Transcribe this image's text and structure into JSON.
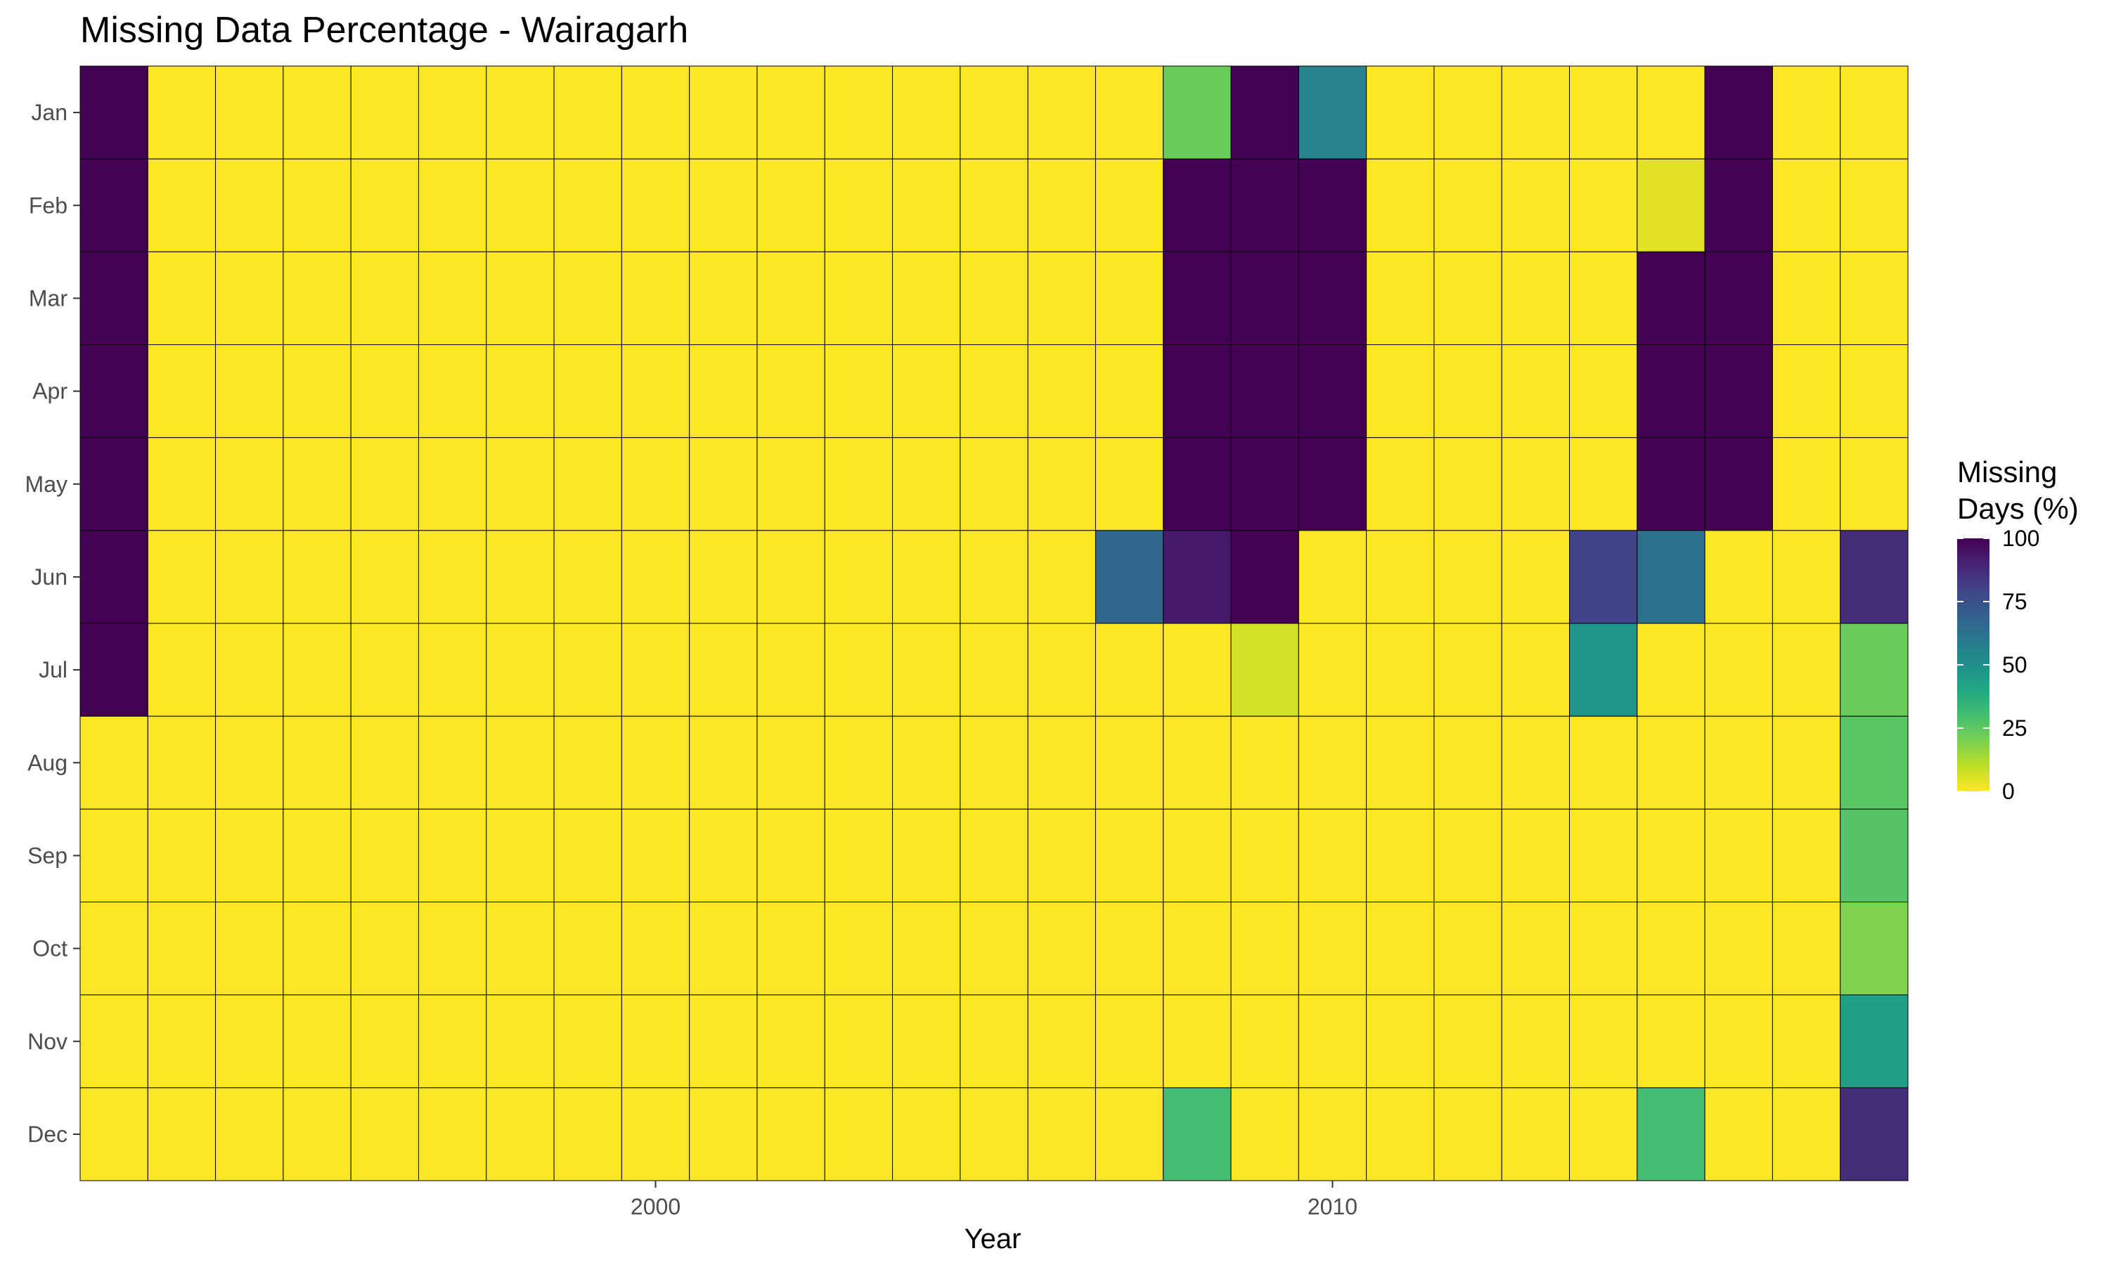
{
  "chart_data": {
    "type": "heatmap",
    "title": "Missing Data Percentage - Wairagarh",
    "xlabel": "Year",
    "ylabel": "",
    "x_tick_labels": [
      "2000",
      "2010"
    ],
    "x_tick_years": [
      2000,
      2010
    ],
    "years": [
      1992,
      1993,
      1994,
      1995,
      1996,
      1997,
      1998,
      1999,
      2000,
      2001,
      2002,
      2003,
      2004,
      2005,
      2006,
      2007,
      2008,
      2009,
      2010,
      2011,
      2012,
      2013,
      2014,
      2015,
      2016,
      2017,
      2018
    ],
    "months": [
      "Jan",
      "Feb",
      "Mar",
      "Apr",
      "May",
      "Jun",
      "Jul",
      "Aug",
      "Sep",
      "Oct",
      "Nov",
      "Dec"
    ],
    "values": [
      [
        100,
        0,
        0,
        0,
        0,
        0,
        0,
        0,
        0,
        0,
        0,
        0,
        0,
        0,
        0,
        0,
        23,
        100,
        55,
        0,
        0,
        0,
        0,
        0,
        100,
        0,
        0
      ],
      [
        100,
        0,
        0,
        0,
        0,
        0,
        0,
        0,
        0,
        0,
        0,
        0,
        0,
        0,
        0,
        0,
        100,
        100,
        100,
        0,
        0,
        0,
        0,
        4,
        100,
        0,
        0
      ],
      [
        100,
        0,
        0,
        0,
        0,
        0,
        0,
        0,
        0,
        0,
        0,
        0,
        0,
        0,
        0,
        0,
        100,
        100,
        100,
        0,
        0,
        0,
        0,
        100,
        100,
        0,
        0
      ],
      [
        100,
        0,
        0,
        0,
        0,
        0,
        0,
        0,
        0,
        0,
        0,
        0,
        0,
        0,
        0,
        0,
        100,
        100,
        100,
        0,
        0,
        0,
        0,
        100,
        100,
        0,
        0
      ],
      [
        100,
        0,
        0,
        0,
        0,
        0,
        0,
        0,
        0,
        0,
        0,
        0,
        0,
        0,
        0,
        0,
        100,
        100,
        100,
        0,
        0,
        0,
        0,
        100,
        100,
        0,
        0
      ],
      [
        100,
        0,
        0,
        0,
        0,
        0,
        0,
        0,
        0,
        0,
        0,
        0,
        0,
        0,
        0,
        67,
        93,
        100,
        0,
        0,
        0,
        0,
        80,
        63,
        0,
        0,
        87
      ],
      [
        100,
        0,
        0,
        0,
        0,
        0,
        0,
        0,
        0,
        0,
        0,
        0,
        0,
        0,
        0,
        0,
        0,
        7,
        0,
        0,
        0,
        0,
        48,
        0,
        0,
        0,
        23
      ],
      [
        0,
        0,
        0,
        0,
        0,
        0,
        0,
        0,
        0,
        0,
        0,
        0,
        0,
        0,
        0,
        0,
        0,
        0,
        0,
        0,
        0,
        0,
        0,
        0,
        0,
        0,
        26
      ],
      [
        0,
        0,
        0,
        0,
        0,
        0,
        0,
        0,
        0,
        0,
        0,
        0,
        0,
        0,
        0,
        0,
        0,
        0,
        0,
        0,
        0,
        0,
        0,
        0,
        0,
        0,
        27
      ],
      [
        0,
        0,
        0,
        0,
        0,
        0,
        0,
        0,
        0,
        0,
        0,
        0,
        0,
        0,
        0,
        0,
        0,
        0,
        0,
        0,
        0,
        0,
        0,
        0,
        0,
        0,
        19
      ],
      [
        0,
        0,
        0,
        0,
        0,
        0,
        0,
        0,
        0,
        0,
        0,
        0,
        0,
        0,
        0,
        0,
        0,
        0,
        0,
        0,
        0,
        0,
        0,
        0,
        0,
        0,
        43
      ],
      [
        0,
        0,
        0,
        0,
        0,
        0,
        0,
        0,
        0,
        0,
        0,
        0,
        0,
        0,
        0,
        0,
        30,
        0,
        0,
        0,
        0,
        0,
        0,
        30,
        0,
        0,
        87
      ]
    ],
    "colorbar": {
      "title_lines": [
        "Missing",
        "Days (%)"
      ],
      "ticks": [
        0,
        25,
        50,
        75,
        100
      ],
      "tick_labels": [
        "0",
        "25",
        "50",
        "75",
        "100"
      ],
      "range": [
        0,
        100
      ],
      "colormap": "viridis-reversed",
      "placement": "right"
    },
    "grid": false,
    "colors": {
      "background": "#ffffff",
      "tile_border": "#000000",
      "low": "#fde725",
      "high": "#440154"
    }
  }
}
